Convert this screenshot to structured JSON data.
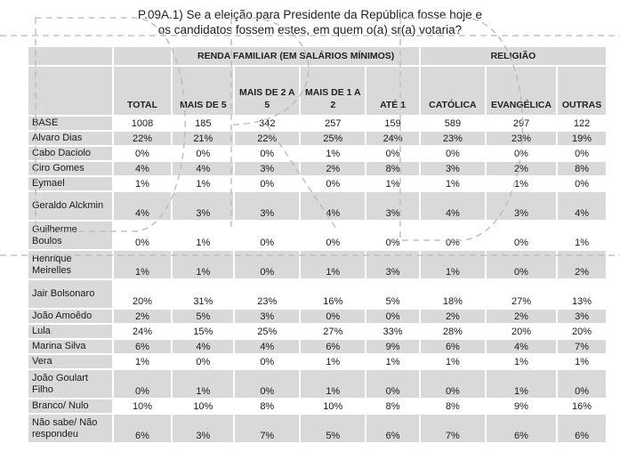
{
  "title_line1": "P.09A.1) Se a eleição para Presidente da República fosse hoje e",
  "title_line2": "os candidatos fossem estes, em quem o(a) sr(a) votaria?",
  "group_income": "RENDA FAMILIAR (EM SALÁRIOS MÍNIMOS)",
  "group_religion": "RELIGIÃO",
  "columns": [
    "TOTAL",
    "MAIS DE 5",
    "MAIS DE 2 A 5",
    "MAIS DE 1 A 2",
    "ATÉ 1",
    "CATÓLICA",
    "EVANGÉLICA",
    "OUTRAS"
  ],
  "rows": [
    {
      "label": "BASE",
      "values": [
        "1008",
        "185",
        "342",
        "257",
        "159",
        "589",
        "297",
        "122"
      ]
    },
    {
      "label": "Alvaro Dias",
      "values": [
        "22%",
        "21%",
        "22%",
        "25%",
        "24%",
        "23%",
        "23%",
        "19%"
      ]
    },
    {
      "label": "Cabo Daciolo",
      "values": [
        "0%",
        "0%",
        "0%",
        "1%",
        "0%",
        "0%",
        "0%",
        "0%"
      ]
    },
    {
      "label": "Ciro Gomes",
      "values": [
        "4%",
        "4%",
        "3%",
        "2%",
        "8%",
        "3%",
        "2%",
        "8%"
      ]
    },
    {
      "label": "Eymael",
      "values": [
        "1%",
        "1%",
        "0%",
        "0%",
        "1%",
        "1%",
        "1%",
        "0%"
      ]
    },
    {
      "label": "Geraldo Alckmin",
      "values": [
        "4%",
        "3%",
        "3%",
        "4%",
        "3%",
        "4%",
        "3%",
        "4%"
      ]
    },
    {
      "label": "Guilherme Boulos",
      "values": [
        "0%",
        "1%",
        "0%",
        "0%",
        "0%",
        "0%",
        "0%",
        "1%"
      ]
    },
    {
      "label": "Henrique Meirelles",
      "values": [
        "1%",
        "1%",
        "0%",
        "1%",
        "3%",
        "1%",
        "0%",
        "2%"
      ]
    },
    {
      "label": "Jair Bolsonaro",
      "values": [
        "20%",
        "31%",
        "23%",
        "16%",
        "5%",
        "18%",
        "27%",
        "13%"
      ]
    },
    {
      "label": "João Amoêdo",
      "values": [
        "2%",
        "5%",
        "3%",
        "0%",
        "0%",
        "2%",
        "2%",
        "3%"
      ]
    },
    {
      "label": "Lula",
      "values": [
        "24%",
        "15%",
        "25%",
        "27%",
        "33%",
        "28%",
        "20%",
        "20%"
      ]
    },
    {
      "label": "Marina Silva",
      "values": [
        "6%",
        "4%",
        "4%",
        "6%",
        "9%",
        "6%",
        "4%",
        "7%"
      ]
    },
    {
      "label": "Vera",
      "values": [
        "1%",
        "0%",
        "0%",
        "1%",
        "1%",
        "1%",
        "1%",
        "1%"
      ]
    },
    {
      "label": "João Goulart Filho",
      "values": [
        "0%",
        "1%",
        "0%",
        "1%",
        "0%",
        "0%",
        "1%",
        "0%"
      ]
    },
    {
      "label": "Branco/ Nulo",
      "values": [
        "10%",
        "10%",
        "8%",
        "10%",
        "8%",
        "8%",
        "9%",
        "16%"
      ]
    },
    {
      "label": "Não sabe/ Não respondeu",
      "values": [
        "6%",
        "3%",
        "7%",
        "5%",
        "6%",
        "7%",
        "6%",
        "6%"
      ]
    }
  ]
}
